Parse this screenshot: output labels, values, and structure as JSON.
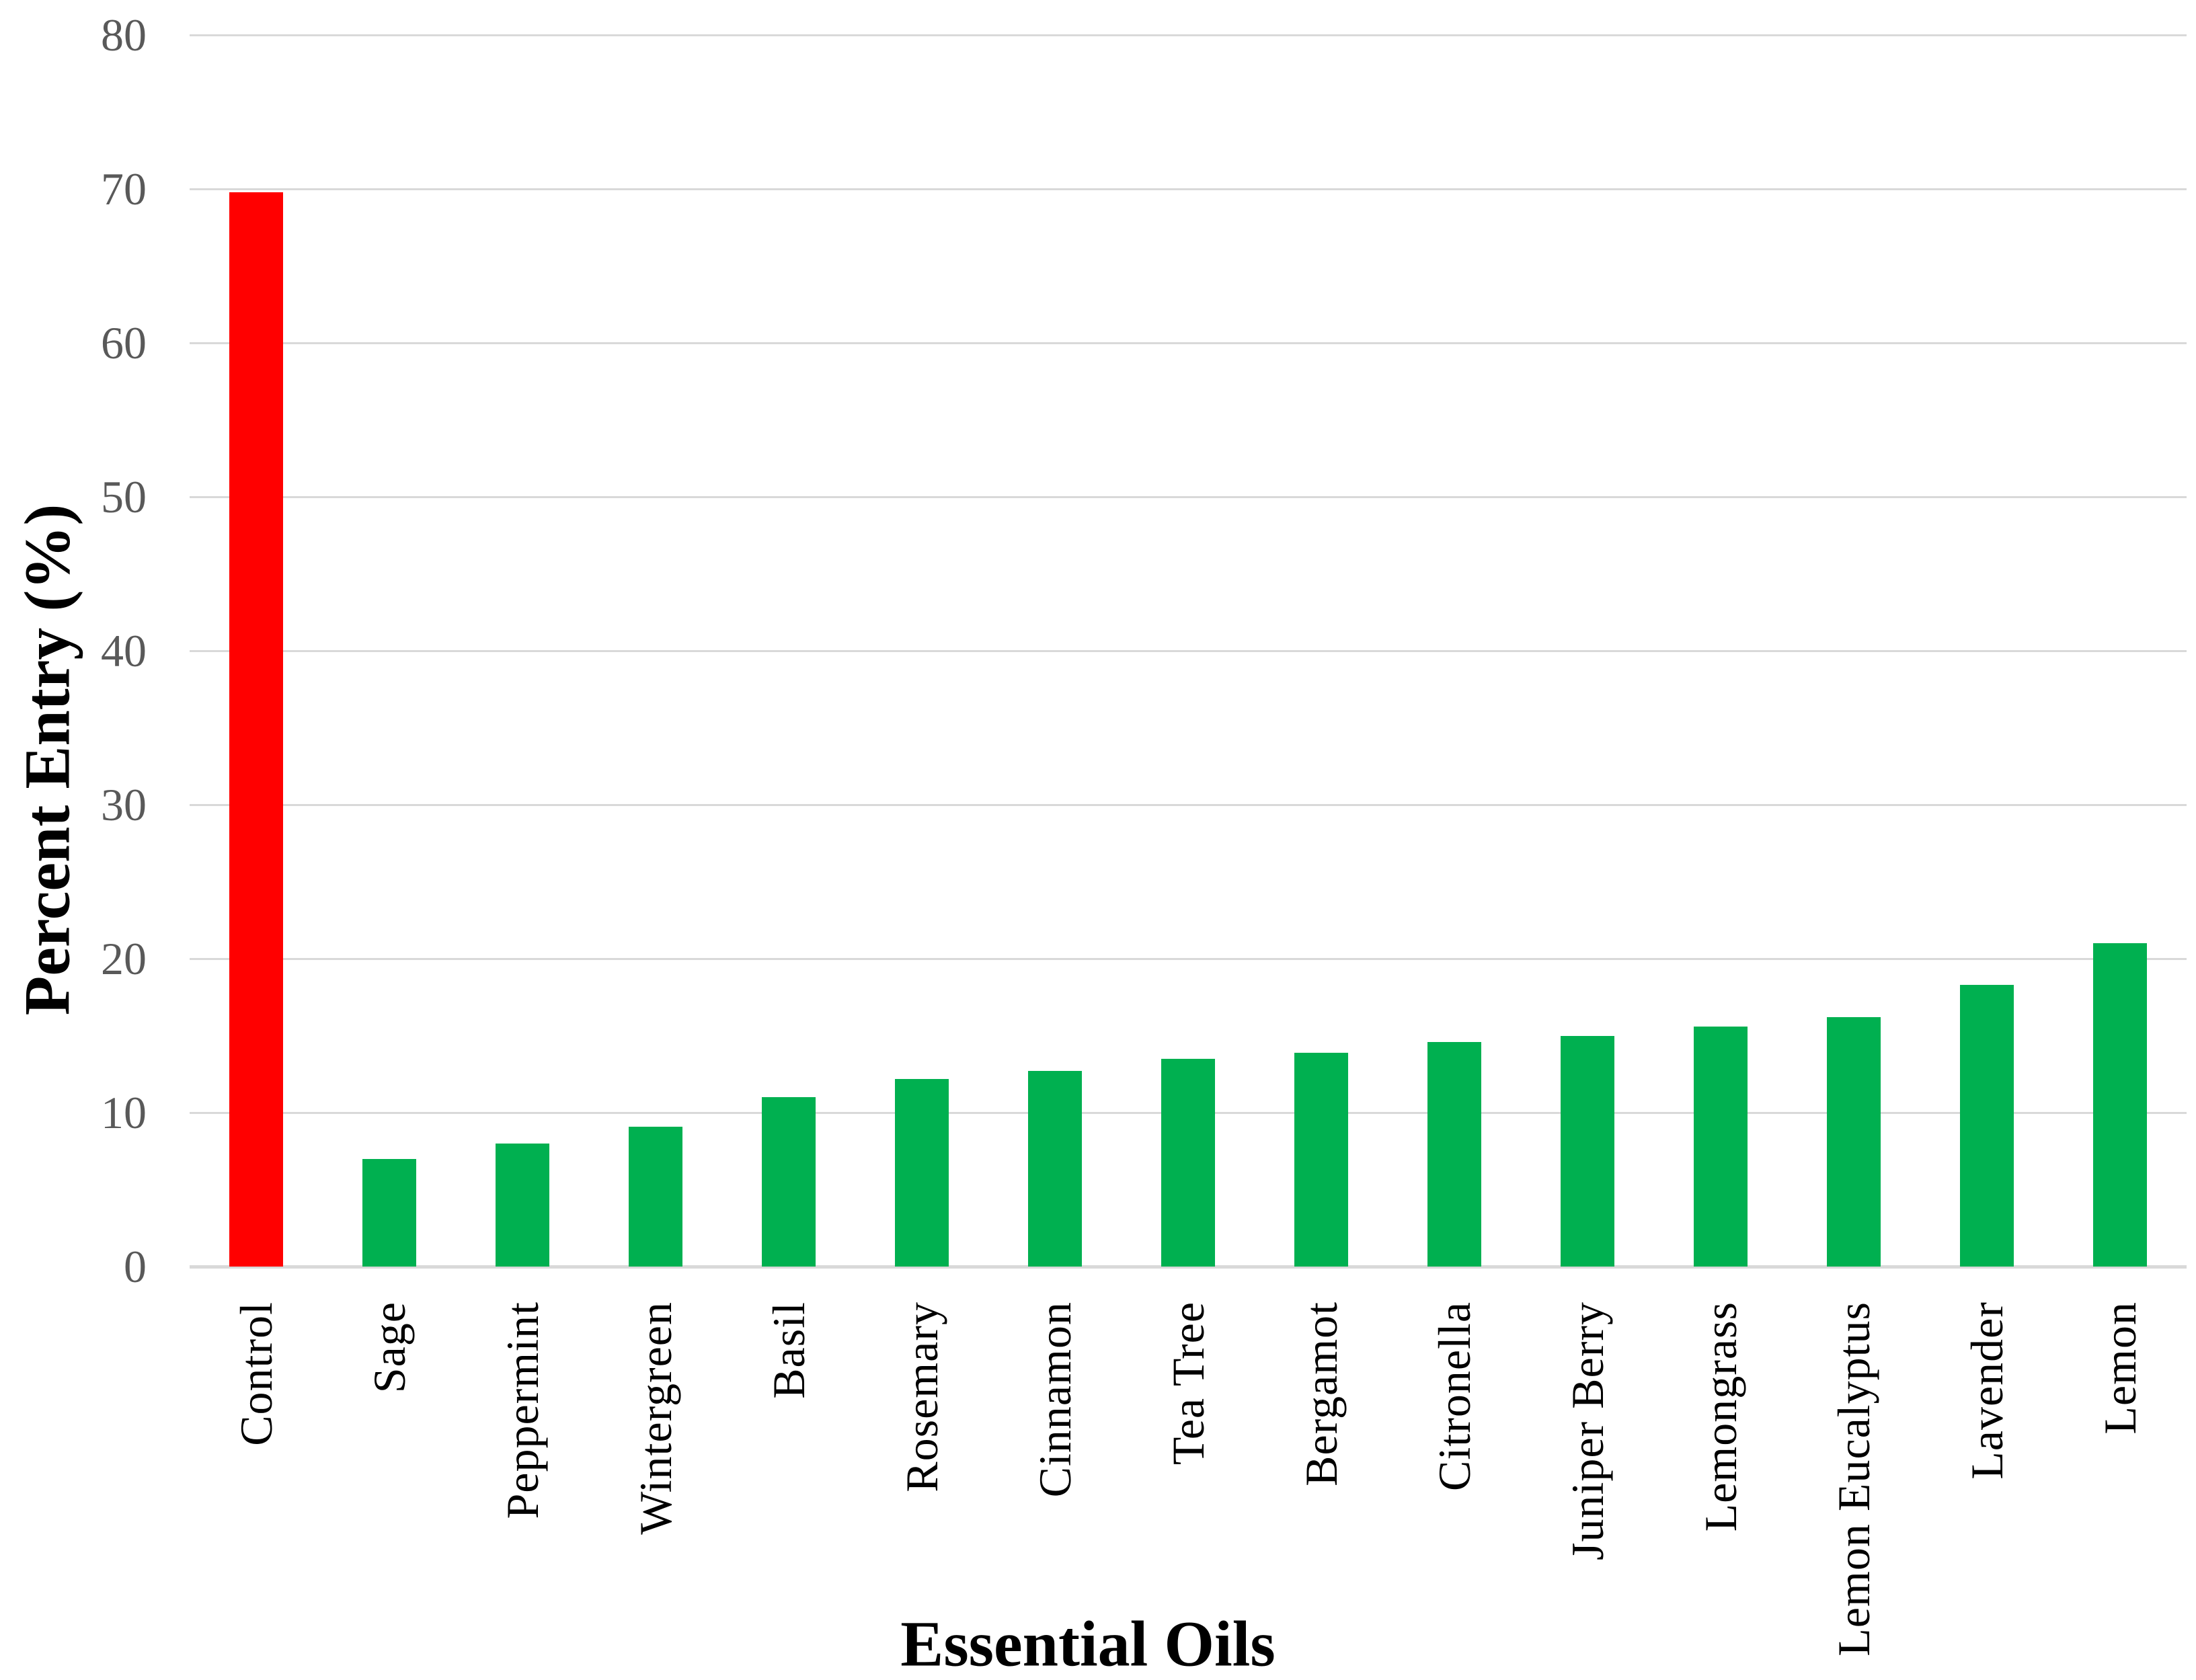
{
  "chart_data": {
    "type": "bar",
    "title": "",
    "xlabel": "Essential Oils",
    "ylabel": "Percent Entry (%)",
    "categories": [
      "Control",
      "Sage",
      "Peppermint",
      "Wintergreen",
      "Basil",
      "Rosemary",
      "Cinnamon",
      "Tea Tree",
      "Bergamot",
      "Citronella",
      "Juniper Berry",
      "Lemongrass",
      "Lemon Eucalyptus",
      "Lavender",
      "Lemon"
    ],
    "values": [
      69.8,
      7.0,
      8.0,
      9.1,
      11.0,
      12.2,
      12.7,
      13.5,
      13.9,
      14.6,
      15.0,
      15.6,
      16.2,
      18.3,
      21.0
    ],
    "bar_colors": [
      "#FF0000",
      "#00B050",
      "#00B050",
      "#00B050",
      "#00B050",
      "#00B050",
      "#00B050",
      "#00B050",
      "#00B050",
      "#00B050",
      "#00B050",
      "#00B050",
      "#00B050",
      "#00B050",
      "#00B050"
    ],
    "ylim": [
      0,
      80
    ],
    "yticks": [
      0,
      10,
      20,
      30,
      40,
      50,
      60,
      70,
      80
    ],
    "grid": true,
    "legend_position": "none",
    "colors": {
      "control_bar": "#FF0000",
      "oil_bar": "#00B050",
      "gridline": "#D9D9D9",
      "axis_line": "#D9D9D9",
      "tick_label": "#595959",
      "category_label": "#000000",
      "axis_title": "#000000",
      "background": "#FFFFFF"
    }
  }
}
